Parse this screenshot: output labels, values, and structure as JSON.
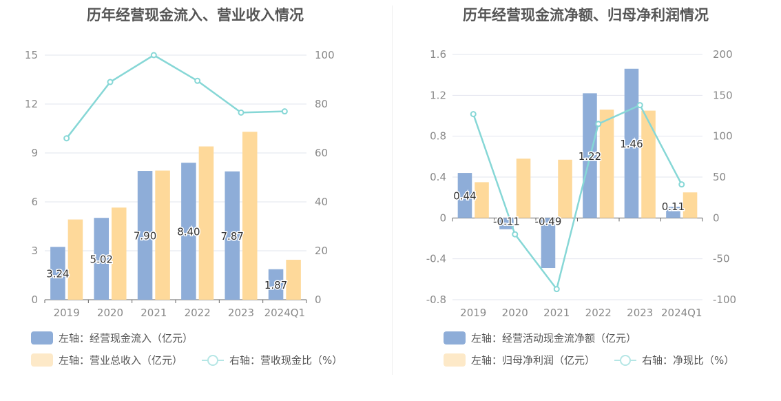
{
  "charts": [
    {
      "title": "历年经营现金流入、营业收入情况",
      "legend": {
        "bar1": "左轴：经营现金流入（亿元）",
        "bar2": "左轴：营业总收入（亿元）",
        "line": "右轴：营收现金比（%）"
      }
    },
    {
      "title": "历年经营现金流净额、归母净利润情况",
      "legend": {
        "bar1": "左轴：经营活动现金流净额（亿元）",
        "bar2": "左轴：归母净利润（亿元）",
        "line": "右轴：净现比（%）"
      }
    }
  ],
  "colors": {
    "bar1": "#8eadd8",
    "bar2": "#fed99a",
    "line": "#86d7d6",
    "grid": "#e2e5ee",
    "axis": "#666666",
    "tick_text": "#888888"
  },
  "chart_data": [
    {
      "type": "bar",
      "title": "历年经营现金流入、营业收入情况",
      "categories": [
        "2019",
        "2020",
        "2021",
        "2022",
        "2023",
        "2024Q1"
      ],
      "y_left": {
        "ticks": [
          "0",
          "3",
          "6",
          "9",
          "12",
          "15"
        ],
        "range": [
          0,
          15
        ]
      },
      "y_right": {
        "ticks": [
          "0",
          "20",
          "40",
          "60",
          "80",
          "100"
        ],
        "range": [
          0,
          100
        ]
      },
      "series": [
        {
          "name": "左轴：经营现金流入（亿元）",
          "axis": "left",
          "kind": "bar",
          "values": [
            3.24,
            5.02,
            7.9,
            8.4,
            7.87,
            1.87
          ],
          "labels": [
            "3.24",
            "5.02",
            "7.90",
            "8.40",
            "7.87",
            "1.87"
          ]
        },
        {
          "name": "左轴：营业总收入（亿元）",
          "axis": "left",
          "kind": "bar",
          "values": [
            4.92,
            5.65,
            7.92,
            9.4,
            10.3,
            2.45
          ]
        },
        {
          "name": "右轴：营收现金比（%）",
          "axis": "right",
          "kind": "line",
          "values": [
            66,
            89,
            100,
            89.5,
            76.5,
            77
          ]
        }
      ]
    },
    {
      "type": "bar",
      "title": "历年经营现金流净额、归母净利润情况",
      "categories": [
        "2019",
        "2020",
        "2021",
        "2022",
        "2023",
        "2024Q1"
      ],
      "y_left": {
        "ticks": [
          "-0.8",
          "-0.4",
          "0",
          "0.4",
          "0.8",
          "1.2",
          "1.6"
        ],
        "range": [
          -0.8,
          1.6
        ]
      },
      "y_right": {
        "ticks": [
          "-100",
          "-50",
          "0",
          "50",
          "100",
          "150",
          "200"
        ],
        "range": [
          -100,
          200
        ]
      },
      "series": [
        {
          "name": "左轴：经营活动现金流净额（亿元）",
          "axis": "left",
          "kind": "bar",
          "values": [
            0.44,
            -0.11,
            -0.49,
            1.22,
            1.46,
            0.11
          ],
          "labels": [
            "0.44",
            "-0.11",
            "-0.49",
            "1.22",
            "1.46",
            "0.11"
          ]
        },
        {
          "name": "左轴：归母净利润（亿元）",
          "axis": "left",
          "kind": "bar",
          "values": [
            0.35,
            0.58,
            0.57,
            1.06,
            1.05,
            0.25
          ]
        },
        {
          "name": "右轴：净现比（%）",
          "axis": "right",
          "kind": "line",
          "values": [
            127,
            -20,
            -87,
            115,
            138,
            41
          ]
        }
      ]
    }
  ]
}
